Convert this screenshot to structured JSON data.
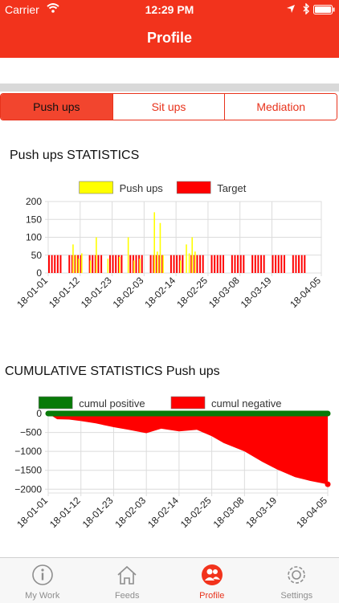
{
  "status": {
    "carrier": "Carrier",
    "time": "12:29 PM"
  },
  "header": {
    "title": "Profile"
  },
  "segments": [
    {
      "label": "Push ups",
      "active": true
    },
    {
      "label": "Sit ups",
      "active": false
    },
    {
      "label": "Mediation",
      "active": false
    }
  ],
  "colors": {
    "accent": "#f2331c",
    "pushups": "#ffff00",
    "target": "#ff0000",
    "positive": "#087a08",
    "negative": "#ff0000"
  },
  "stats_title": "Push ups STATISTICS",
  "cumul_title": "CUMULATIVE STATISTICS Push ups",
  "chart_data": [
    {
      "type": "bar",
      "title": "Push ups STATISTICS",
      "legend": [
        "Push ups",
        "Target"
      ],
      "legend_position": "top",
      "x_ticks": [
        "18-01-01",
        "18-01-12",
        "18-01-23",
        "18-02-03",
        "18-02-14",
        "18-02-25",
        "18-03-08",
        "18-03-19",
        "18-04-05"
      ],
      "x_range": [
        "18-01-01",
        "18-04-05"
      ],
      "y_ticks": [
        0,
        50,
        100,
        150,
        200
      ],
      "ylim": [
        0,
        200
      ],
      "grid": true,
      "series": [
        {
          "name": "Push ups",
          "points": [
            {
              "x": "18-01-09",
              "y": 80
            },
            {
              "x": "18-01-10",
              "y": 50
            },
            {
              "x": "18-01-11",
              "y": 40
            },
            {
              "x": "18-01-12",
              "y": 55
            },
            {
              "x": "18-01-15",
              "y": 35
            },
            {
              "x": "18-01-17",
              "y": 100
            },
            {
              "x": "18-01-21",
              "y": 40
            },
            {
              "x": "18-01-25",
              "y": 45
            },
            {
              "x": "18-01-28",
              "y": 100
            },
            {
              "x": "18-01-30",
              "y": 35
            },
            {
              "x": "18-02-01",
              "y": 40
            },
            {
              "x": "18-02-06",
              "y": 170
            },
            {
              "x": "18-02-07",
              "y": 60
            },
            {
              "x": "18-02-08",
              "y": 140
            },
            {
              "x": "18-02-09",
              "y": 50
            },
            {
              "x": "18-02-15",
              "y": 35
            },
            {
              "x": "18-02-17",
              "y": 80
            },
            {
              "x": "18-02-18",
              "y": 55
            },
            {
              "x": "18-02-19",
              "y": 100
            },
            {
              "x": "18-02-20",
              "y": 60
            }
          ]
        },
        {
          "name": "Target",
          "value": 50,
          "dates": [
            "18-01-01",
            "18-01-02",
            "18-01-03",
            "18-01-04",
            "18-01-05",
            "18-01-08",
            "18-01-09",
            "18-01-10",
            "18-01-11",
            "18-01-12",
            "18-01-15",
            "18-01-16",
            "18-01-17",
            "18-01-18",
            "18-01-19",
            "18-01-22",
            "18-01-23",
            "18-01-24",
            "18-01-25",
            "18-01-26",
            "18-01-29",
            "18-01-30",
            "18-01-31",
            "18-02-01",
            "18-02-02",
            "18-02-05",
            "18-02-06",
            "18-02-07",
            "18-02-08",
            "18-02-09",
            "18-02-12",
            "18-02-13",
            "18-02-14",
            "18-02-15",
            "18-02-16",
            "18-02-19",
            "18-02-20",
            "18-02-21",
            "18-02-22",
            "18-02-23",
            "18-02-26",
            "18-02-27",
            "18-02-28",
            "18-03-01",
            "18-03-02",
            "18-03-05",
            "18-03-06",
            "18-03-07",
            "18-03-08",
            "18-03-09",
            "18-03-12",
            "18-03-13",
            "18-03-14",
            "18-03-15",
            "18-03-16",
            "18-03-19",
            "18-03-20",
            "18-03-21",
            "18-03-22",
            "18-03-23",
            "18-03-26",
            "18-03-27",
            "18-03-28",
            "18-03-29",
            "18-03-30"
          ]
        }
      ]
    },
    {
      "type": "area",
      "title": "CUMULATIVE STATISTICS Push ups",
      "legend": [
        "cumul positive",
        "cumul negative"
      ],
      "legend_position": "top",
      "x_ticks": [
        "18-01-01",
        "18-01-12",
        "18-01-23",
        "18-02-03",
        "18-02-14",
        "18-02-25",
        "18-03-08",
        "18-03-19",
        "18-04-05"
      ],
      "x_range": [
        "18-01-01",
        "18-04-05"
      ],
      "y_ticks": [
        0,
        -500,
        -1000,
        -1500,
        -2000
      ],
      "ylim": [
        -2100,
        0
      ],
      "grid": true,
      "series": [
        {
          "name": "cumul positive",
          "value": 0
        },
        {
          "name": "cumul negative",
          "points": [
            {
              "x": "18-01-01",
              "y": 0
            },
            {
              "x": "18-01-04",
              "y": -150
            },
            {
              "x": "18-01-08",
              "y": -160
            },
            {
              "x": "18-01-12",
              "y": -200
            },
            {
              "x": "18-01-17",
              "y": -260
            },
            {
              "x": "18-01-23",
              "y": -360
            },
            {
              "x": "18-01-28",
              "y": -430
            },
            {
              "x": "18-02-03",
              "y": -520
            },
            {
              "x": "18-02-08",
              "y": -400
            },
            {
              "x": "18-02-14",
              "y": -470
            },
            {
              "x": "18-02-20",
              "y": -430
            },
            {
              "x": "18-02-25",
              "y": -600
            },
            {
              "x": "18-03-01",
              "y": -780
            },
            {
              "x": "18-03-08",
              "y": -1000
            },
            {
              "x": "18-03-14",
              "y": -1280
            },
            {
              "x": "18-03-19",
              "y": -1480
            },
            {
              "x": "18-03-25",
              "y": -1680
            },
            {
              "x": "18-03-30",
              "y": -1780
            },
            {
              "x": "18-04-05",
              "y": -1870
            }
          ]
        }
      ]
    }
  ],
  "tabs": [
    {
      "label": "My Work",
      "icon": "info-icon",
      "active": false
    },
    {
      "label": "Feeds",
      "icon": "home-icon",
      "active": false
    },
    {
      "label": "Profile",
      "icon": "users-icon",
      "active": true
    },
    {
      "label": "Settings",
      "icon": "gear-icon",
      "active": false
    }
  ]
}
